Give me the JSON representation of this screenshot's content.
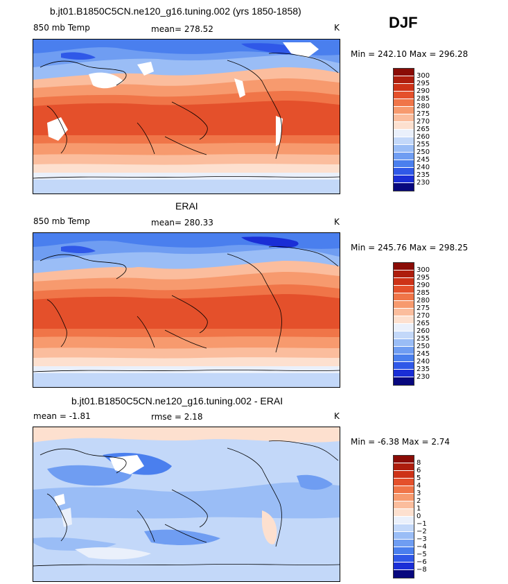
{
  "season": "DJF",
  "palettes": {
    "temp": [
      "#08087e",
      "#1a2ed6",
      "#2f58e8",
      "#4a7fee",
      "#6f9df2",
      "#9abdf6",
      "#c3d8f9",
      "#eaf0fb",
      "#fde0cf",
      "#fbbd9d",
      "#f79a6e",
      "#f07548",
      "#e4502b",
      "#cd3217",
      "#ad1d0d",
      "#8a0c06"
    ],
    "diff": [
      "#08087e",
      "#1a2ed6",
      "#2f58e8",
      "#4a7fee",
      "#6f9df2",
      "#9abdf6",
      "#c3d8f9",
      "#eaf0fb",
      "#fde0cf",
      "#fbbd9d",
      "#f79a6e",
      "#f07548",
      "#e4502b",
      "#cd3217",
      "#ad1d0d",
      "#8a0c06"
    ]
  },
  "chart_data": [
    {
      "type": "heatmap",
      "title": "b.jt01.B1850C5CN.ne120_g16.tuning.002 (yrs 1850-1858)",
      "left_label": "850 mb Temp",
      "stat_label": "mean= 278.52",
      "units": "K",
      "minmax": "Min = 242.10 Max = 296.28",
      "min": 242.1,
      "max": 296.28,
      "mean": 278.52,
      "colorbar_levels": [
        "300",
        "295",
        "290",
        "285",
        "280",
        "275",
        "270",
        "265",
        "260",
        "255",
        "250",
        "245",
        "240",
        "235",
        "230"
      ]
    },
    {
      "type": "heatmap",
      "title": "ERAI",
      "left_label": "850 mb Temp",
      "stat_label": "mean= 280.33",
      "units": "K",
      "minmax": "Min = 245.76 Max = 298.25",
      "min": 245.76,
      "max": 298.25,
      "mean": 280.33,
      "colorbar_levels": [
        "300",
        "295",
        "290",
        "285",
        "280",
        "275",
        "270",
        "265",
        "260",
        "255",
        "250",
        "245",
        "240",
        "235",
        "230"
      ]
    },
    {
      "type": "heatmap",
      "title": "b.jt01.B1850C5CN.ne120_g16.tuning.002 - ERAI",
      "left_label": "mean =   -1.81",
      "stat_label": "rmse =    2.18",
      "units": "K",
      "minmax": "Min =  -6.38 Max =    2.74",
      "min": -6.38,
      "max": 2.74,
      "mean": -1.81,
      "rmse": 2.18,
      "colorbar_levels": [
        "8",
        "6",
        "5",
        "4",
        "3",
        "2",
        "1",
        "0",
        "−1",
        "−2",
        "−3",
        "−4",
        "−5",
        "−6",
        "−8"
      ]
    }
  ]
}
